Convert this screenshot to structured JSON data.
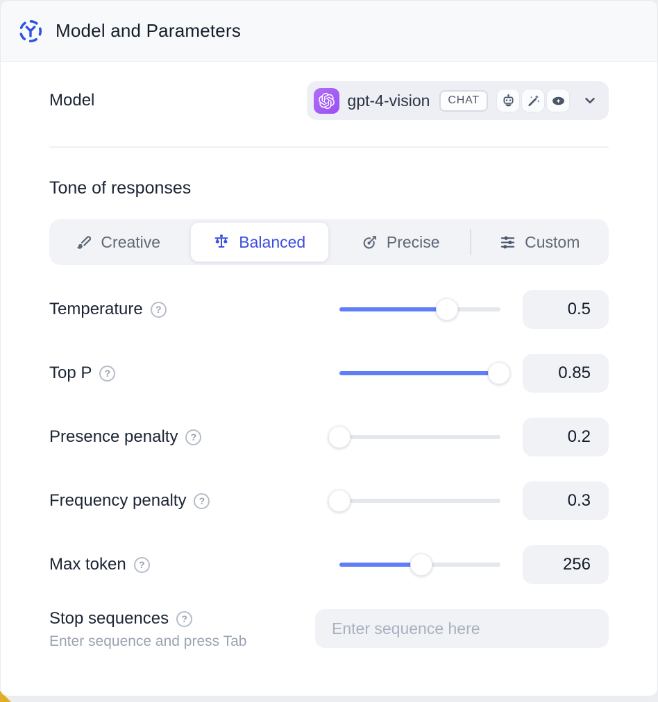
{
  "header": {
    "title": "Model and Parameters"
  },
  "model_row": {
    "label": "Model",
    "selector": {
      "provider": "openai",
      "model_name": "gpt-4-vision",
      "badge": "CHAT",
      "capabilities": [
        "assistant",
        "magic",
        "vision"
      ]
    }
  },
  "tone": {
    "label": "Tone of responses",
    "options": [
      {
        "label": "Creative",
        "icon": "paintbrush-icon",
        "selected": false
      },
      {
        "label": "Balanced",
        "icon": "balance-scale-icon",
        "selected": true
      },
      {
        "label": "Precise",
        "icon": "target-icon",
        "selected": false
      },
      {
        "label": "Custom",
        "icon": "sliders-icon",
        "selected": false
      }
    ]
  },
  "parameters": [
    {
      "label": "Temperature",
      "value": "0.5",
      "fill": 0.67
    },
    {
      "label": "Top P",
      "value": "0.85",
      "fill": 0.99
    },
    {
      "label": "Presence penalty",
      "value": "0.2",
      "fill": 0.0
    },
    {
      "label": "Frequency penalty",
      "value": "0.3",
      "fill": 0.0
    },
    {
      "label": "Max token",
      "value": "256",
      "fill": 0.51
    }
  ],
  "stop_sequences": {
    "label": "Stop sequences",
    "hint": "Enter sequence and press Tab",
    "placeholder": "Enter sequence here"
  },
  "ui": {
    "help_glyph": "?"
  },
  "colors": {
    "accent_blue": "#2e52e8",
    "selected_indigo": "#3b4ce0",
    "slider_fill": "#5f7ef7",
    "logo_purple": "#9a4ff2",
    "header_bg": "#f8f9fb",
    "pill_bg": "#edeff4",
    "field_bg": "#f1f2f6",
    "corner_accent": "#e2ae25"
  }
}
